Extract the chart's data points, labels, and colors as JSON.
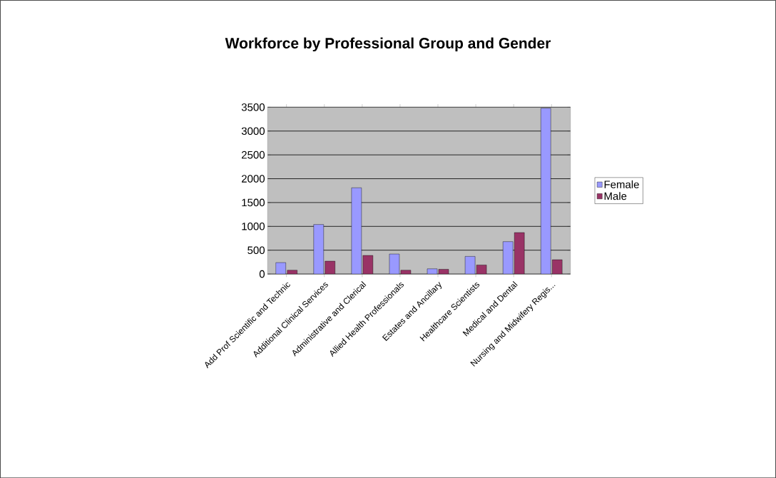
{
  "chart_data": {
    "type": "bar",
    "title": "Workforce by Professional Group and Gender",
    "categories": [
      "Add Prof Scientific and Technic",
      "Additional Clinical Services",
      "Administrative and Clerical",
      "Allied Health Professionals",
      "Estates and Ancillary",
      "Healthcare Scientists",
      "Medical and Dental",
      "Nursing and Midwifery Regis..."
    ],
    "series": [
      {
        "name": "Female",
        "color": "#9999ff",
        "values": [
          240,
          1040,
          1810,
          420,
          110,
          370,
          680,
          3480
        ]
      },
      {
        "name": "Male",
        "color": "#993366",
        "values": [
          80,
          270,
          390,
          80,
          100,
          190,
          870,
          300
        ]
      }
    ],
    "ylim": [
      0,
      3500
    ],
    "yticks": [
      0,
      500,
      1000,
      1500,
      2000,
      2500,
      3000,
      3500
    ],
    "grid": "y",
    "legend": "right"
  }
}
